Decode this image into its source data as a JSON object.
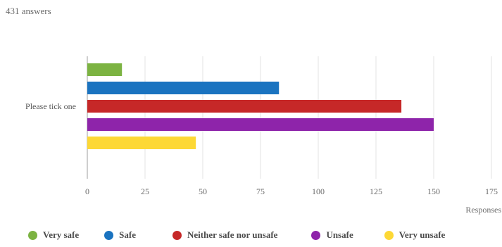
{
  "header": {
    "answers_label": "431 answers"
  },
  "chart_data": {
    "type": "bar",
    "orientation": "horizontal",
    "categories": [
      "Please tick one"
    ],
    "series": [
      {
        "name": "Very safe",
        "values": [
          15
        ],
        "color": "#7cb342"
      },
      {
        "name": "Safe",
        "values": [
          83
        ],
        "color": "#1a73c0"
      },
      {
        "name": "Neither safe nor unsafe",
        "values": [
          136
        ],
        "color": "#c62828"
      },
      {
        "name": "Unsafe",
        "values": [
          150
        ],
        "color": "#8e24aa"
      },
      {
        "name": "Very unsafe",
        "values": [
          47
        ],
        "color": "#fdd835"
      }
    ],
    "xlim": [
      0,
      175
    ],
    "xticks": [
      "0",
      "25",
      "50",
      "75",
      "100",
      "125",
      "150",
      "175"
    ],
    "xlabel": "Responses",
    "grid": true,
    "legend_position": "bottom"
  }
}
